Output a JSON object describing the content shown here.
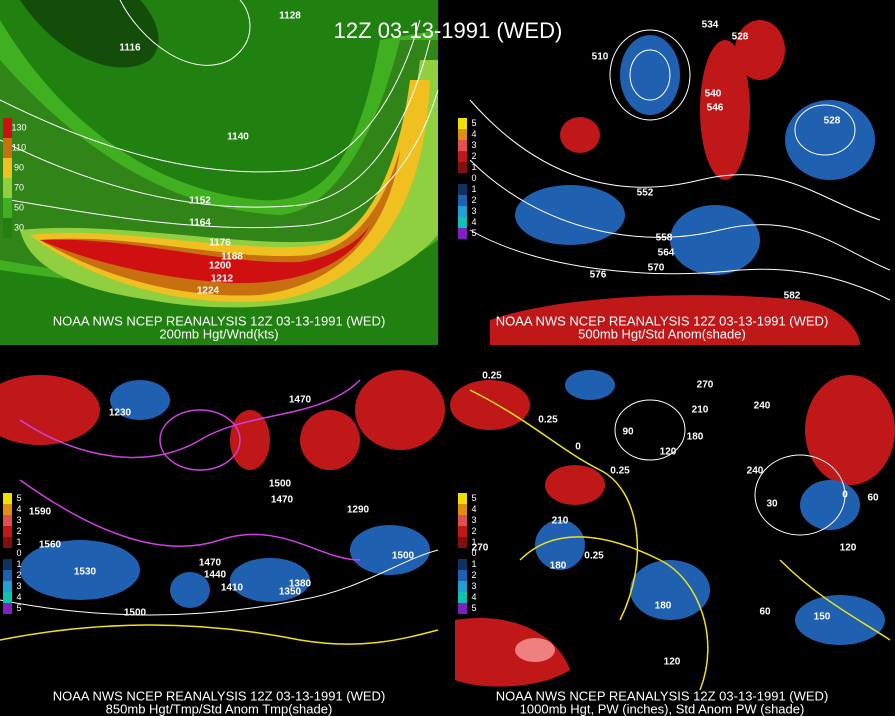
{
  "title": "12Z 03-13-1991 (WED)",
  "panels": [
    {
      "caption": [
        "NOAA NWS NCEP REANALYSIS 12Z 03-13-1991 (WED)",
        "200mb Hgt/Wnd(kts)"
      ],
      "colorbar": {
        "labels": [
          "130",
          "110",
          "90",
          "70",
          "50",
          "30"
        ],
        "colors": [
          "#d01010",
          "#c87010",
          "#f0c020",
          "#90d040",
          "#40b020",
          "#208010"
        ]
      },
      "contour_labels": [
        "1128",
        "1116",
        "1140",
        "1152",
        "1164",
        "1176",
        "1188",
        "1200",
        "1212",
        "1224"
      ]
    },
    {
      "caption": [
        "NOAA NWS NCEP REANALYSIS 12Z 03-13-1991 (WED)",
        "500mb Hgt/Std Anom(shade)"
      ],
      "colorbar": {
        "labels": [
          "5",
          "4",
          "3",
          "2",
          "1",
          "0",
          "1",
          "2",
          "3",
          "4",
          "5"
        ],
        "colors": [
          "#f0e000",
          "#e09010",
          "#e05050",
          "#c01818",
          "#801010",
          "#000000",
          "#103060",
          "#2060b0",
          "#20a0d0",
          "#10c0b0",
          "#8020c0"
        ]
      },
      "contour_labels": [
        "534",
        "528",
        "510",
        "540",
        "546",
        "552",
        "558",
        "564",
        "570",
        "576",
        "582",
        "528"
      ]
    },
    {
      "caption": [
        "NOAA NWS NCEP REANALYSIS 12Z 03-13-1991 (WED)",
        "850mb Hgt/Tmp/Std Anom Tmp(shade)"
      ],
      "colorbar": {
        "labels": [
          "5",
          "4",
          "3",
          "2",
          "1",
          "0",
          "1",
          "2",
          "3",
          "4",
          "5"
        ],
        "colors": [
          "#f0e000",
          "#e09010",
          "#e05050",
          "#c01818",
          "#801010",
          "#000000",
          "#103060",
          "#2060b0",
          "#20a0d0",
          "#10c0b0",
          "#8020c0"
        ]
      },
      "contour_labels": [
        "1470",
        "1590",
        "1560",
        "1530",
        "1500",
        "1470",
        "1440",
        "1410",
        "1380",
        "1350",
        "1500",
        "1470",
        "1290",
        "1500",
        "1230"
      ]
    },
    {
      "caption": [
        "NOAA NWS NCEP REANALYSIS 12Z 03-13-1991 (WED)",
        "1000mb Hgt, PW (inches), Std Anom PW (shade)"
      ],
      "colorbar": {
        "labels": [
          "5",
          "4",
          "3",
          "2",
          "1",
          "0",
          "1",
          "2",
          "3",
          "4",
          "5"
        ],
        "colors": [
          "#f0e000",
          "#e09010",
          "#e05050",
          "#c01818",
          "#801010",
          "#000000",
          "#103060",
          "#2060b0",
          "#20a0d0",
          "#10c0b0",
          "#8020c0"
        ]
      },
      "contour_labels": [
        "270",
        "240",
        "210",
        "180",
        "120",
        "90",
        "0",
        "240",
        "30",
        "0",
        "60",
        "120",
        "150",
        "180",
        "210",
        "180",
        "270",
        "60",
        "120",
        "0.25",
        "0.25",
        "0.25",
        "0.25"
      ]
    }
  ]
}
